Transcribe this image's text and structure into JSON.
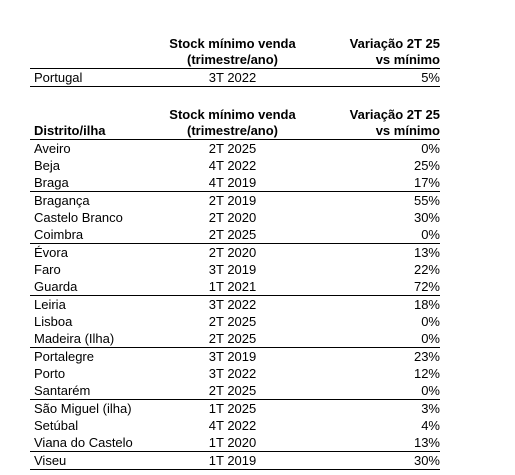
{
  "national": {
    "header": {
      "col1": "",
      "col2_line1": "Stock mínimo venda",
      "col2_line2": "(trimestre/ano)",
      "col3_line1": "Variação 2T 25",
      "col3_line2": "vs mínimo"
    },
    "row": {
      "name": "Portugal",
      "min": "3T 2022",
      "var": "5%"
    }
  },
  "districts": {
    "header": {
      "col1": "Distrito/ilha",
      "col2_line1": "Stock mínimo venda",
      "col2_line2": "(trimestre/ano)",
      "col3_line1": "Variação 2T 25",
      "col3_line2": "vs mínimo"
    },
    "rows": [
      {
        "name": "Aveiro",
        "min": "2T 2025",
        "var": "0%"
      },
      {
        "name": "Beja",
        "min": "4T 2022",
        "var": "25%"
      },
      {
        "name": "Braga",
        "min": "4T 2019",
        "var": "17%"
      },
      {
        "name": "Bragança",
        "min": "2T 2019",
        "var": "55%"
      },
      {
        "name": "Castelo Branco",
        "min": "2T 2020",
        "var": "30%"
      },
      {
        "name": "Coimbra",
        "min": "2T 2025",
        "var": "0%"
      },
      {
        "name": "Évora",
        "min": "2T 2020",
        "var": "13%"
      },
      {
        "name": "Faro",
        "min": "3T 2019",
        "var": "22%"
      },
      {
        "name": "Guarda",
        "min": "1T 2021",
        "var": "72%"
      },
      {
        "name": "Leiria",
        "min": "3T 2022",
        "var": "18%"
      },
      {
        "name": "Lisboa",
        "min": "2T 2025",
        "var": "0%"
      },
      {
        "name": "Madeira (Ilha)",
        "min": "2T 2025",
        "var": "0%"
      },
      {
        "name": "Portalegre",
        "min": "3T 2019",
        "var": "23%"
      },
      {
        "name": "Porto",
        "min": "3T 2022",
        "var": "12%"
      },
      {
        "name": "Santarém",
        "min": "2T 2025",
        "var": "0%"
      },
      {
        "name": "São Miguel (ilha)",
        "min": "1T 2025",
        "var": "3%"
      },
      {
        "name": "Setúbal",
        "min": "4T 2022",
        "var": "4%"
      },
      {
        "name": "Viana do Castelo",
        "min": "1T 2020",
        "var": "13%"
      },
      {
        "name": "Viseu",
        "min": "1T 2019",
        "var": "30%"
      }
    ]
  }
}
